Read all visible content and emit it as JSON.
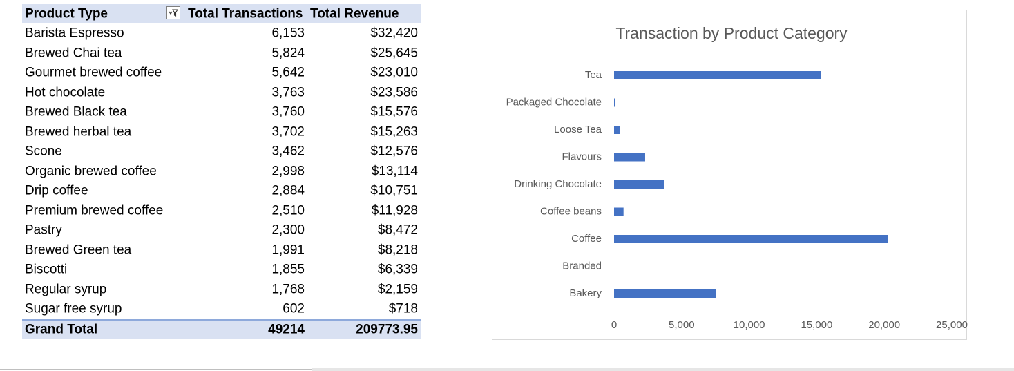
{
  "pivot": {
    "headers": {
      "product_type": "Product Type",
      "total_transactions": "Total Transactions",
      "total_revenue": "Total Revenue"
    },
    "rows": [
      {
        "type": "Barista Espresso",
        "transactions": "6,153",
        "revenue": "$32,420"
      },
      {
        "type": "Brewed Chai tea",
        "transactions": "5,824",
        "revenue": "$25,645"
      },
      {
        "type": "Gourmet brewed coffee",
        "transactions": "5,642",
        "revenue": "$23,010"
      },
      {
        "type": "Hot chocolate",
        "transactions": "3,763",
        "revenue": "$23,586"
      },
      {
        "type": "Brewed Black tea",
        "transactions": "3,760",
        "revenue": "$15,576"
      },
      {
        "type": "Brewed herbal tea",
        "transactions": "3,702",
        "revenue": "$15,263"
      },
      {
        "type": "Scone",
        "transactions": "3,462",
        "revenue": "$12,576"
      },
      {
        "type": "Organic brewed coffee",
        "transactions": "2,998",
        "revenue": "$13,114"
      },
      {
        "type": "Drip coffee",
        "transactions": "2,884",
        "revenue": "$10,751"
      },
      {
        "type": "Premium brewed coffee",
        "transactions": "2,510",
        "revenue": "$11,928"
      },
      {
        "type": "Pastry",
        "transactions": "2,300",
        "revenue": "$8,472"
      },
      {
        "type": "Brewed Green tea",
        "transactions": "1,991",
        "revenue": "$8,218"
      },
      {
        "type": "Biscotti",
        "transactions": "1,855",
        "revenue": "$6,339"
      },
      {
        "type": "Regular syrup",
        "transactions": "1,768",
        "revenue": "$2,159"
      },
      {
        "type": "Sugar free syrup",
        "transactions": "602",
        "revenue": "$718"
      }
    ],
    "grand_total": {
      "label": "Grand Total",
      "transactions": "49214",
      "revenue": "209773.95"
    }
  },
  "chart_data": {
    "type": "bar",
    "orientation": "horizontal",
    "title": "Transaction by Product Category",
    "categories": [
      "Tea",
      "Packaged Chocolate",
      "Loose Tea",
      "Flavours",
      "Drinking Chocolate",
      "Coffee beans",
      "Coffee",
      "Branded",
      "Bakery"
    ],
    "values": [
      15300,
      100,
      450,
      2300,
      3700,
      700,
      20250,
      0,
      7550
    ],
    "xlim": [
      0,
      25000
    ],
    "xticks": [
      0,
      5000,
      10000,
      15000,
      20000,
      25000
    ],
    "xtick_labels": [
      "0",
      "5,000",
      "10,000",
      "15,000",
      "20,000",
      "25,000"
    ],
    "grid": false,
    "bar_color": "#4472c4"
  },
  "colors": {
    "header_fill": "#d9e1f2",
    "header_border": "#8ea9db",
    "bar": "#4472c4"
  }
}
